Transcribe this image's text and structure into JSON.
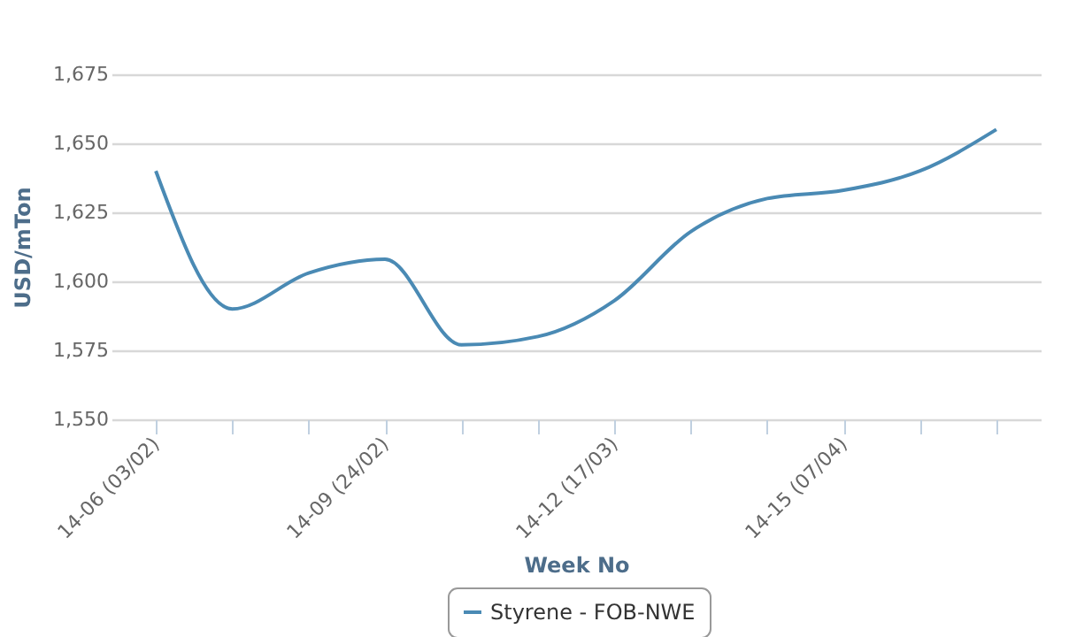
{
  "chart_data": {
    "type": "line",
    "xlabel": "Week No",
    "ylabel": "USD/mTon",
    "categories": [
      "14-06 (03/02)",
      null,
      null,
      "14-09 (24/02)",
      null,
      null,
      "14-12 (17/03)",
      null,
      null,
      "14-15 (07/04)",
      null,
      null
    ],
    "series": [
      {
        "name": "Styrene - FOB-NWE",
        "color": "#4a8ab4",
        "values": [
          1640,
          1590,
          1603,
          1608,
          1577,
          1580,
          1593,
          1618,
          1630,
          1633,
          1640,
          1655
        ]
      }
    ],
    "ylim": [
      1550,
      1675
    ],
    "yticks": [
      {
        "value": 1550,
        "label": "1,550"
      },
      {
        "value": 1575,
        "label": "1,575"
      },
      {
        "value": 1600,
        "label": "1,600"
      },
      {
        "value": 1625,
        "label": "1,625"
      },
      {
        "value": 1650,
        "label": "1,650"
      },
      {
        "value": 1675,
        "label": "1,675"
      }
    ],
    "grid": "y",
    "legend": "bottom",
    "marker": "none",
    "line_style": "solid"
  }
}
